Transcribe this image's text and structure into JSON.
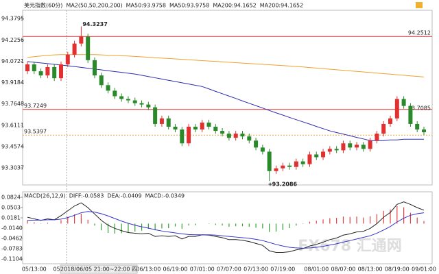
{
  "chart_data": [
    {
      "type": "candlestick",
      "title": "美元指数(60分)",
      "indicator": "MA2(50,50,200,200)",
      "ylim": [
        93.18,
        94.44
      ],
      "yticks": [
        94.3795,
        94.2256,
        94.0721,
        93.9184,
        93.7648,
        93.6111,
        93.4574,
        93.3037
      ],
      "up_color": "#e03030",
      "down_color": "#2a8a2a",
      "open": [
        94.0,
        94.05,
        94.0,
        93.97,
        94.03,
        93.95,
        94.05,
        94.12,
        94.2,
        94.25,
        94.08,
        93.97,
        93.9,
        93.86,
        93.82,
        93.8,
        93.79,
        93.77,
        93.76,
        93.74,
        93.62,
        93.66,
        93.6,
        93.58,
        93.48,
        93.6,
        93.58,
        93.63,
        93.6,
        93.57,
        93.55,
        93.52,
        93.55,
        93.53,
        93.5,
        93.45,
        93.42,
        93.28,
        93.3,
        93.32,
        93.31,
        93.35,
        93.33,
        93.4,
        93.38,
        93.42,
        93.44,
        93.43,
        93.48,
        93.45,
        93.47,
        93.44,
        93.5,
        93.55,
        93.62,
        93.66,
        93.8,
        93.75,
        93.62,
        93.58
      ],
      "high": [
        94.07,
        94.07,
        94.02,
        94.05,
        94.05,
        94.07,
        94.14,
        94.22,
        94.3237,
        94.27,
        94.1,
        93.99,
        93.92,
        93.88,
        93.84,
        93.82,
        93.81,
        93.79,
        93.78,
        93.76,
        93.68,
        93.68,
        93.62,
        93.6,
        93.62,
        93.62,
        93.65,
        93.65,
        93.62,
        93.59,
        93.57,
        93.57,
        93.57,
        93.55,
        93.52,
        93.47,
        93.44,
        93.32,
        93.34,
        93.34,
        93.37,
        93.37,
        93.42,
        93.42,
        93.44,
        93.46,
        93.46,
        93.5,
        93.5,
        93.49,
        93.49,
        93.52,
        93.57,
        93.64,
        93.68,
        93.82,
        93.82,
        93.77,
        93.64,
        93.6
      ],
      "low": [
        93.98,
        93.98,
        93.95,
        93.95,
        93.93,
        93.93,
        94.03,
        94.1,
        94.18,
        94.06,
        93.95,
        93.88,
        93.84,
        93.8,
        93.78,
        93.77,
        93.75,
        93.74,
        93.72,
        93.6,
        93.6,
        93.58,
        93.56,
        93.46,
        93.46,
        93.56,
        93.56,
        93.58,
        93.55,
        93.53,
        93.5,
        93.5,
        93.51,
        93.48,
        93.43,
        93.4,
        93.2086,
        93.26,
        93.28,
        93.29,
        93.29,
        93.31,
        93.31,
        93.36,
        93.36,
        93.4,
        93.41,
        93.41,
        93.43,
        93.43,
        93.42,
        93.42,
        93.48,
        93.53,
        93.6,
        93.64,
        93.73,
        93.6,
        93.56,
        93.54
      ],
      "close": [
        94.05,
        94.0,
        93.97,
        94.03,
        93.95,
        94.05,
        94.12,
        94.2,
        94.25,
        94.08,
        93.97,
        93.9,
        93.86,
        93.82,
        93.8,
        93.79,
        93.77,
        93.76,
        93.74,
        93.62,
        93.66,
        93.6,
        93.58,
        93.48,
        93.6,
        93.58,
        93.63,
        93.6,
        93.57,
        93.55,
        93.52,
        93.55,
        93.53,
        93.5,
        93.45,
        93.42,
        93.28,
        93.3,
        93.32,
        93.31,
        93.35,
        93.33,
        93.4,
        93.38,
        93.42,
        93.44,
        93.43,
        93.48,
        93.45,
        93.47,
        93.44,
        93.5,
        93.55,
        93.62,
        93.66,
        93.8,
        93.75,
        93.62,
        93.58,
        93.56
      ],
      "series": [
        {
          "name": "MA50:93.9758",
          "color": "#2b2bb0",
          "values": [
            94.07,
            94.065,
            94.06,
            94.055,
            94.05,
            94.045,
            94.04,
            94.034,
            94.028,
            94.022,
            94.016,
            94.01,
            94.004,
            93.998,
            93.992,
            93.986,
            93.98,
            93.971,
            93.962,
            93.953,
            93.944,
            93.935,
            93.926,
            93.917,
            93.908,
            93.899,
            93.89,
            93.873,
            93.855,
            93.838,
            93.821,
            93.804,
            93.786,
            93.769,
            93.752,
            93.735,
            93.717,
            93.7,
            93.684,
            93.667,
            93.651,
            93.635,
            93.619,
            93.602,
            93.586,
            93.57,
            93.558,
            93.547,
            93.535,
            93.523,
            93.512,
            93.5,
            93.5,
            93.5,
            93.505,
            93.505,
            93.51,
            93.51,
            93.51,
            93.51
          ]
        },
        {
          "name": "MA200:94.1652",
          "color": "#f0a030",
          "values": [
            94.1,
            94.105,
            94.11,
            94.115,
            94.118,
            94.12,
            94.12,
            94.12,
            94.12,
            94.12,
            94.12,
            94.118,
            94.116,
            94.114,
            94.112,
            94.11,
            94.107,
            94.104,
            94.101,
            94.098,
            94.095,
            94.092,
            94.089,
            94.086,
            94.083,
            94.08,
            94.077,
            94.074,
            94.071,
            94.068,
            94.065,
            94.062,
            94.059,
            94.056,
            94.053,
            94.05,
            94.047,
            94.044,
            94.041,
            94.038,
            94.035,
            94.031,
            94.027,
            94.023,
            94.019,
            94.015,
            94.011,
            94.007,
            94.003,
            93.999,
            93.995,
            93.991,
            93.987,
            93.983,
            93.979,
            93.975,
            93.971,
            93.967,
            93.963,
            93.959
          ]
        }
      ],
      "levels": [
        {
          "value": 94.2512,
          "color": "#e03030",
          "side": "right",
          "line": true
        },
        {
          "value": 93.7249,
          "color": "#e03030",
          "side": "left",
          "line": true
        },
        {
          "value": 93.7085,
          "color": "#e03030",
          "side": "right",
          "line": false
        },
        {
          "value": 93.5397,
          "color": "#f0a030",
          "side": "left",
          "line": true
        }
      ],
      "watermark": "FX678 汇通网"
    },
    {
      "type": "macd",
      "title": "MACD(26,12,9)",
      "ylim": [
        -0.1254,
        0.0995
      ],
      "yticks": [
        0.0824,
        0.0503,
        0.0181,
        {
          "value": -0.014,
          "label": "-0.0140"
        },
        -0.0462,
        -0.0783,
        -0.1104
      ],
      "up_color": "#e04040",
      "down_color": "#30a030",
      "categories": [
        null,
        "05/13:00",
        null,
        null,
        null,
        "05/11",
        null,
        null,
        null,
        null,
        null,
        null,
        null,
        null,
        null,
        null,
        null,
        null,
        "06/13:00",
        null,
        null,
        null,
        "06/19:00",
        null,
        null,
        null,
        "07/01:00",
        null,
        null,
        null,
        "07/07:00",
        null,
        null,
        null,
        "07/13:00",
        null,
        null,
        null,
        "07/19:00",
        null,
        null,
        null,
        null,
        "08/01:00",
        null,
        null,
        null,
        "08/07:00",
        null,
        null,
        null,
        "08/13:00",
        null,
        null,
        null,
        "08/19:00",
        null,
        null,
        null,
        "09/01:00"
      ],
      "crosshair_label": "2018/06/05 21:00~22:00 四",
      "series": [
        {
          "name": "DIFF:-0.0583",
          "color": "#222222",
          "values": [
            0.02,
            0.015,
            0.01,
            0.015,
            0.012,
            0.025,
            0.04,
            0.055,
            0.065,
            0.05,
            0.03,
            0.01,
            -0.005,
            -0.015,
            -0.022,
            -0.028,
            -0.03,
            -0.032,
            -0.03,
            -0.04,
            -0.038,
            -0.04,
            -0.038,
            -0.048,
            -0.04,
            -0.04,
            -0.035,
            -0.036,
            -0.04,
            -0.044,
            -0.05,
            -0.05,
            -0.052,
            -0.056,
            -0.062,
            -0.068,
            -0.085,
            -0.09,
            -0.09,
            -0.088,
            -0.082,
            -0.078,
            -0.07,
            -0.065,
            -0.058,
            -0.05,
            -0.045,
            -0.036,
            -0.032,
            -0.026,
            -0.024,
            -0.015,
            0.0,
            0.02,
            0.035,
            0.06,
            0.068,
            0.06,
            0.05,
            0.042
          ]
        },
        {
          "name": "DEA:-0.0409",
          "color": "#3333cc",
          "values": [
            0.01,
            0.011,
            0.011,
            0.012,
            0.012,
            0.014,
            0.019,
            0.026,
            0.034,
            0.038,
            0.036,
            0.031,
            0.024,
            0.016,
            0.008,
            0.001,
            -0.005,
            -0.01,
            -0.014,
            -0.019,
            -0.023,
            -0.026,
            -0.029,
            -0.032,
            -0.034,
            -0.035,
            -0.035,
            -0.035,
            -0.036,
            -0.038,
            -0.04,
            -0.042,
            -0.044,
            -0.046,
            -0.049,
            -0.053,
            -0.059,
            -0.065,
            -0.07,
            -0.074,
            -0.076,
            -0.077,
            -0.076,
            -0.074,
            -0.071,
            -0.067,
            -0.063,
            -0.058,
            -0.053,
            -0.048,
            -0.043,
            -0.038,
            -0.03,
            -0.02,
            -0.009,
            0.005,
            0.017,
            0.026,
            0.031,
            0.034
          ]
        },
        {
          "name": "MACD:-0.0349",
          "color": "#cc33cc",
          "kind": "bar",
          "values": [
            0.01,
            0.004,
            -0.001,
            0.003,
            0.0,
            0.011,
            0.021,
            0.029,
            0.031,
            0.012,
            -0.006,
            -0.021,
            -0.029,
            -0.031,
            -0.03,
            -0.029,
            -0.025,
            -0.022,
            -0.016,
            -0.021,
            -0.015,
            -0.014,
            -0.009,
            -0.016,
            -0.006,
            -0.005,
            0.0,
            -0.001,
            -0.004,
            -0.006,
            -0.01,
            -0.008,
            -0.008,
            -0.01,
            -0.013,
            -0.015,
            -0.026,
            -0.025,
            -0.02,
            -0.014,
            -0.006,
            -0.001,
            0.006,
            0.009,
            0.013,
            0.017,
            0.018,
            0.022,
            0.021,
            0.022,
            0.019,
            0.023,
            0.03,
            0.04,
            0.044,
            0.055,
            0.051,
            0.034,
            0.019,
            0.008
          ]
        }
      ]
    }
  ]
}
